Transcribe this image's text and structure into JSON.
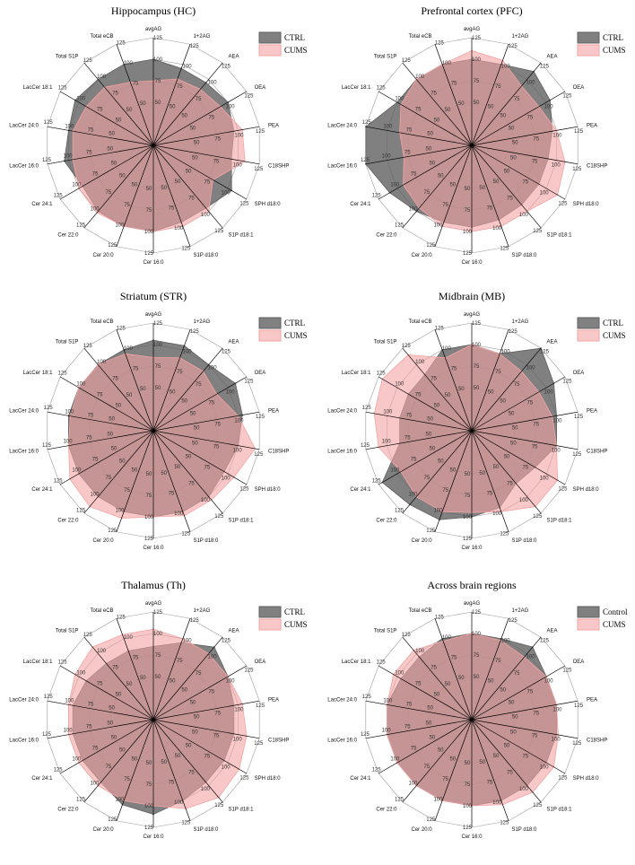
{
  "chart_data": [
    {
      "type": "radar",
      "title": "Hippocampus (HC)",
      "axes": [
        "avgAG",
        "1+2AG",
        "AEA",
        "OEA",
        "PEA",
        "C18SHP",
        "SPH d18:0",
        "S1P d18:1",
        "S1P d18:0",
        "Cer 16:0",
        "Cer 20:0",
        "Cer 22:0",
        "Cer 24:1",
        "LacCer 16:0",
        "LacCer 24:0",
        "LacCer 18:1",
        "Total S1P",
        "Total eCB"
      ],
      "rlim": [
        0,
        125
      ],
      "ticks": [
        "50",
        "75",
        "100",
        "125"
      ],
      "legend": [
        "CTRL",
        "CUMS"
      ],
      "series": [
        {
          "name": "CTRL",
          "color": "#606060",
          "values": [
            100,
            95,
            95,
            100,
            95,
            92,
            105,
            95,
            95,
            100,
            100,
            100,
            95,
            105,
            100,
            105,
            100,
            100
          ]
        },
        {
          "name": "CUMS",
          "color": "#f4a3a3",
          "values": [
            75,
            82,
            85,
            90,
            105,
            108,
            80,
            100,
            100,
            100,
            100,
            102,
            100,
            95,
            95,
            90,
            88,
            78
          ]
        }
      ]
    },
    {
      "type": "radar",
      "title": "Prefrontal cortex (PFC)",
      "axes": [
        "avgAG",
        "1+2AG",
        "AEA",
        "OEA",
        "PEA",
        "C18SHP",
        "SPH d18:0",
        "S1P d18:1",
        "S1P d18:0",
        "Cer 16:0",
        "Cer 20:0",
        "Cer 22:0",
        "Cer 24:1",
        "LacCer 16:0",
        "LacCer 24:0",
        "LacCer 18:1",
        "Total S1P",
        "Total eCB"
      ],
      "rlim": [
        0,
        125
      ],
      "ticks": [
        "50",
        "75",
        "100",
        "125"
      ],
      "legend": [
        "CTRL",
        "CUMS"
      ],
      "series": [
        {
          "name": "CTRL",
          "color": "#606060",
          "values": [
            100,
            100,
            112,
            105,
            95,
            90,
            90,
            90,
            92,
            95,
            95,
            100,
            110,
            125,
            125,
            100,
            100,
            100
          ]
        },
        {
          "name": "CUMS",
          "color": "#f4a3a3",
          "values": [
            110,
            105,
            90,
            90,
            100,
            110,
            115,
            100,
            100,
            100,
            100,
            95,
            92,
            80,
            85,
            95,
            100,
            100
          ]
        }
      ]
    },
    {
      "type": "radar",
      "title": "Striatum (STR)",
      "axes": [
        "avgAG",
        "1+2AG",
        "AEA",
        "OEA",
        "PEA",
        "C18SHP",
        "SPH d18:0",
        "S1P d18:1",
        "S1P d18:0",
        "Cer 16:0",
        "Cer 20:0",
        "Cer 22:0",
        "Cer 24:1",
        "LacCer 16:0",
        "LacCer 24:0",
        "LacCer 18:1",
        "Total S1P",
        "Total eCB"
      ],
      "rlim": [
        0,
        125
      ],
      "ticks": [
        "50",
        "75",
        "100",
        "125"
      ],
      "legend": [
        "CTRL",
        "CUMS"
      ],
      "series": [
        {
          "name": "CTRL",
          "color": "#606060",
          "values": [
            105,
            105,
            100,
            110,
            105,
            100,
            95,
            100,
            100,
            100,
            100,
            100,
            100,
            100,
            100,
            100,
            100,
            100
          ]
        },
        {
          "name": "CUMS",
          "color": "#f4a3a3",
          "values": [
            85,
            90,
            90,
            85,
            100,
            120,
            108,
            105,
            105,
            100,
            108,
            115,
            112,
            100,
            98,
            100,
            100,
            95
          ]
        }
      ]
    },
    {
      "type": "radar",
      "title": "Midbrain (MB)",
      "axes": [
        "avgAG",
        "1+2AG",
        "AEA",
        "OEA",
        "PEA",
        "C18SHP",
        "SPH d18:0",
        "S1P d18:1",
        "S1P d18:0",
        "Cer 16:0",
        "Cer 20:0",
        "Cer 22:0",
        "Cer 24:1",
        "LacCer 16:0",
        "LacCer 24:0",
        "LacCer 18:1",
        "Total S1P",
        "Total eCB"
      ],
      "rlim": [
        0,
        125
      ],
      "ticks": [
        "50",
        "75",
        "100",
        "125"
      ],
      "legend": [
        "CTRL",
        "CUMS"
      ],
      "series": [
        {
          "name": "CTRL",
          "color": "#606060",
          "values": [
            100,
            95,
            125,
            110,
            100,
            100,
            85,
            80,
            95,
            100,
            110,
            112,
            120,
            85,
            85,
            85,
            85,
            100
          ]
        },
        {
          "name": "CUMS",
          "color": "#f4a3a3",
          "values": [
            100,
            95,
            90,
            90,
            95,
            100,
            115,
            115,
            100,
            95,
            100,
            100,
            95,
            110,
            115,
            120,
            115,
            90
          ]
        }
      ]
    },
    {
      "type": "radar",
      "title": "Thalamus (Th)",
      "axes": [
        "avgAG",
        "1+2AG",
        "AEA",
        "OEA",
        "PEA",
        "C18SHP",
        "SPH d18:0",
        "S1P d18:1",
        "S1P d18:0",
        "Cer 16:0",
        "Cer 20:0",
        "Cer 22:0",
        "Cer 24:1",
        "LacCer 16:0",
        "LacCer 24:0",
        "LacCer 18:1",
        "Total S1P",
        "Total eCB"
      ],
      "rlim": [
        0,
        125
      ],
      "ticks": [
        "50",
        "75",
        "100",
        "125"
      ],
      "legend": [
        "CTRL",
        "CUMS"
      ],
      "series": [
        {
          "name": "CTRL",
          "color": "#606060",
          "values": [
            85,
            95,
            110,
            100,
            95,
            95,
            95,
            95,
            100,
            110,
            105,
            95,
            95,
            95,
            95,
            90,
            85,
            85
          ]
        },
        {
          "name": "CUMS",
          "color": "#f4a3a3",
          "values": [
            105,
            100,
            100,
            100,
            105,
            110,
            115,
            118,
            110,
            100,
            100,
            100,
            100,
            100,
            100,
            105,
            110,
            105
          ]
        }
      ]
    },
    {
      "type": "radar",
      "title": "Across brain regions",
      "axes": [
        "avgAG",
        "1+2AG",
        "AEA",
        "OEA",
        "PEA",
        "C18SHP",
        "SPH d18:0",
        "S1P d18:1",
        "S1P d18:0",
        "Cer 16:0",
        "Cer 20:0",
        "Cer 22:0",
        "Cer 24:1",
        "LacCer 16:0",
        "LacCer 24:0",
        "LacCer 18:1",
        "Total S1P",
        "Total eCB"
      ],
      "rlim": [
        0,
        125
      ],
      "ticks": [
        "50",
        "75",
        "100",
        "125"
      ],
      "legend": [
        "Control",
        "CUMS"
      ],
      "series": [
        {
          "name": "Control",
          "color": "#606060",
          "values": [
            100,
            100,
            110,
            100,
            100,
            100,
            100,
            100,
            100,
            100,
            100,
            100,
            100,
            100,
            100,
            95,
            95,
            100
          ]
        },
        {
          "name": "CUMS",
          "color": "#f4a3a3",
          "values": [
            100,
            98,
            95,
            100,
            100,
            102,
            110,
            110,
            105,
            100,
            100,
            100,
            100,
            100,
            100,
            105,
            105,
            97
          ]
        }
      ]
    }
  ]
}
